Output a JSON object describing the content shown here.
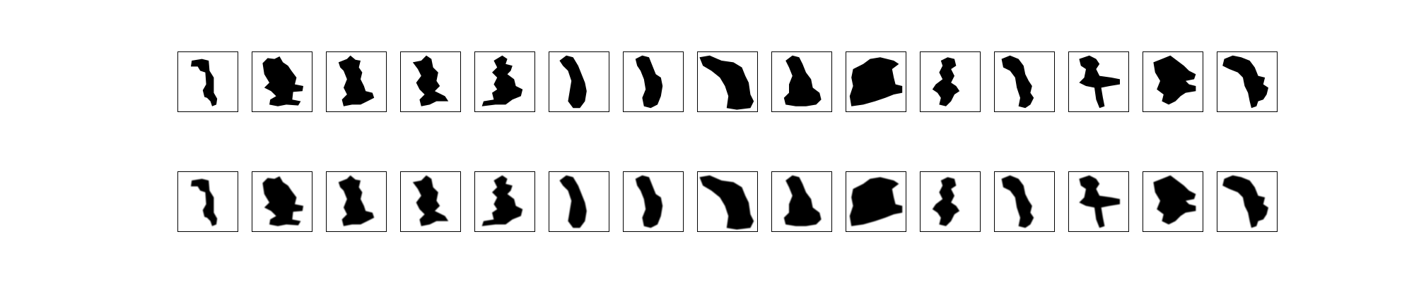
{
  "figure": {
    "rows": [
      {
        "id": "originals",
        "style": "binary",
        "panels": [
          {
            "shape": 0
          },
          {
            "shape": 1
          },
          {
            "shape": 2
          },
          {
            "shape": 3
          },
          {
            "shape": 4
          },
          {
            "shape": 5
          },
          {
            "shape": 6
          },
          {
            "shape": 7
          },
          {
            "shape": 8
          },
          {
            "shape": 9
          },
          {
            "shape": 10
          },
          {
            "shape": 11
          },
          {
            "shape": 12
          },
          {
            "shape": 13
          },
          {
            "shape": 14
          }
        ]
      },
      {
        "id": "reconstructions",
        "style": "soft",
        "panels": [
          {
            "shape": 0
          },
          {
            "shape": 1
          },
          {
            "shape": 2
          },
          {
            "shape": 3
          },
          {
            "shape": 4
          },
          {
            "shape": 5
          },
          {
            "shape": 6
          },
          {
            "shape": 7
          },
          {
            "shape": 8
          },
          {
            "shape": 9
          },
          {
            "shape": 10
          },
          {
            "shape": 11
          },
          {
            "shape": 12
          },
          {
            "shape": 13
          },
          {
            "shape": 14
          }
        ]
      }
    ],
    "colors": {
      "shape": "#000000",
      "background": "#ffffff",
      "frame": "#000000"
    }
  }
}
